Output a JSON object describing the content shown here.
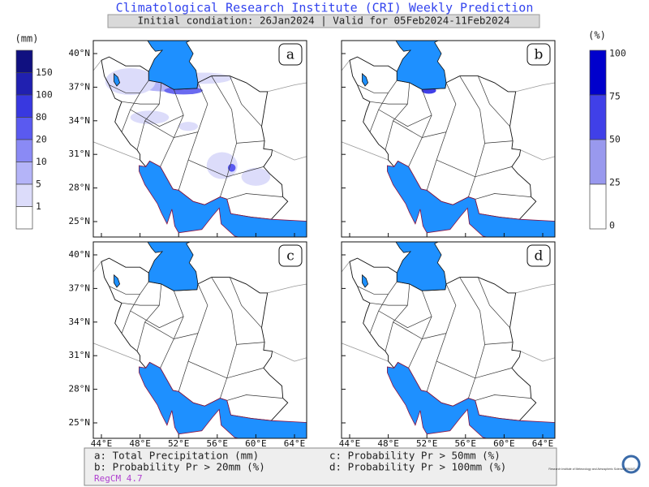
{
  "header": {
    "title": "Climatological Research Institute (CRI) Weekly Prediction",
    "subtitle": "Initial condiation: 26Jan2024 | Valid for 05Feb2024-11Feb2024"
  },
  "left_colorbar": {
    "unit": "(mm)",
    "labels": [
      "150",
      "100",
      "80",
      "20",
      "10",
      "5",
      "1"
    ]
  },
  "right_colorbar": {
    "unit": "(%)",
    "labels": [
      "100",
      "75",
      "50",
      "25",
      "0"
    ]
  },
  "panels": [
    {
      "label": "a"
    },
    {
      "label": "b"
    },
    {
      "label": "c"
    },
    {
      "label": "d"
    }
  ],
  "lat_labels": [
    "40°N",
    "37°N",
    "34°N",
    "31°N",
    "28°N",
    "25°N"
  ],
  "lon_labels": [
    "44°E",
    "48°E",
    "52°E",
    "56°E",
    "60°E",
    "64°E"
  ],
  "legend": {
    "items": [
      "a: Total Precipitation (mm)",
      "c: Probability Pr > 50mm (%)",
      "b: Probability Pr > 20mm (%)",
      "d: Probability Pr > 100mm (%)"
    ],
    "model": "RegCM 4.7"
  },
  "logo": {
    "text": "Research Institute of Meteorology and Atmospheric Science (RIMAS)"
  }
}
